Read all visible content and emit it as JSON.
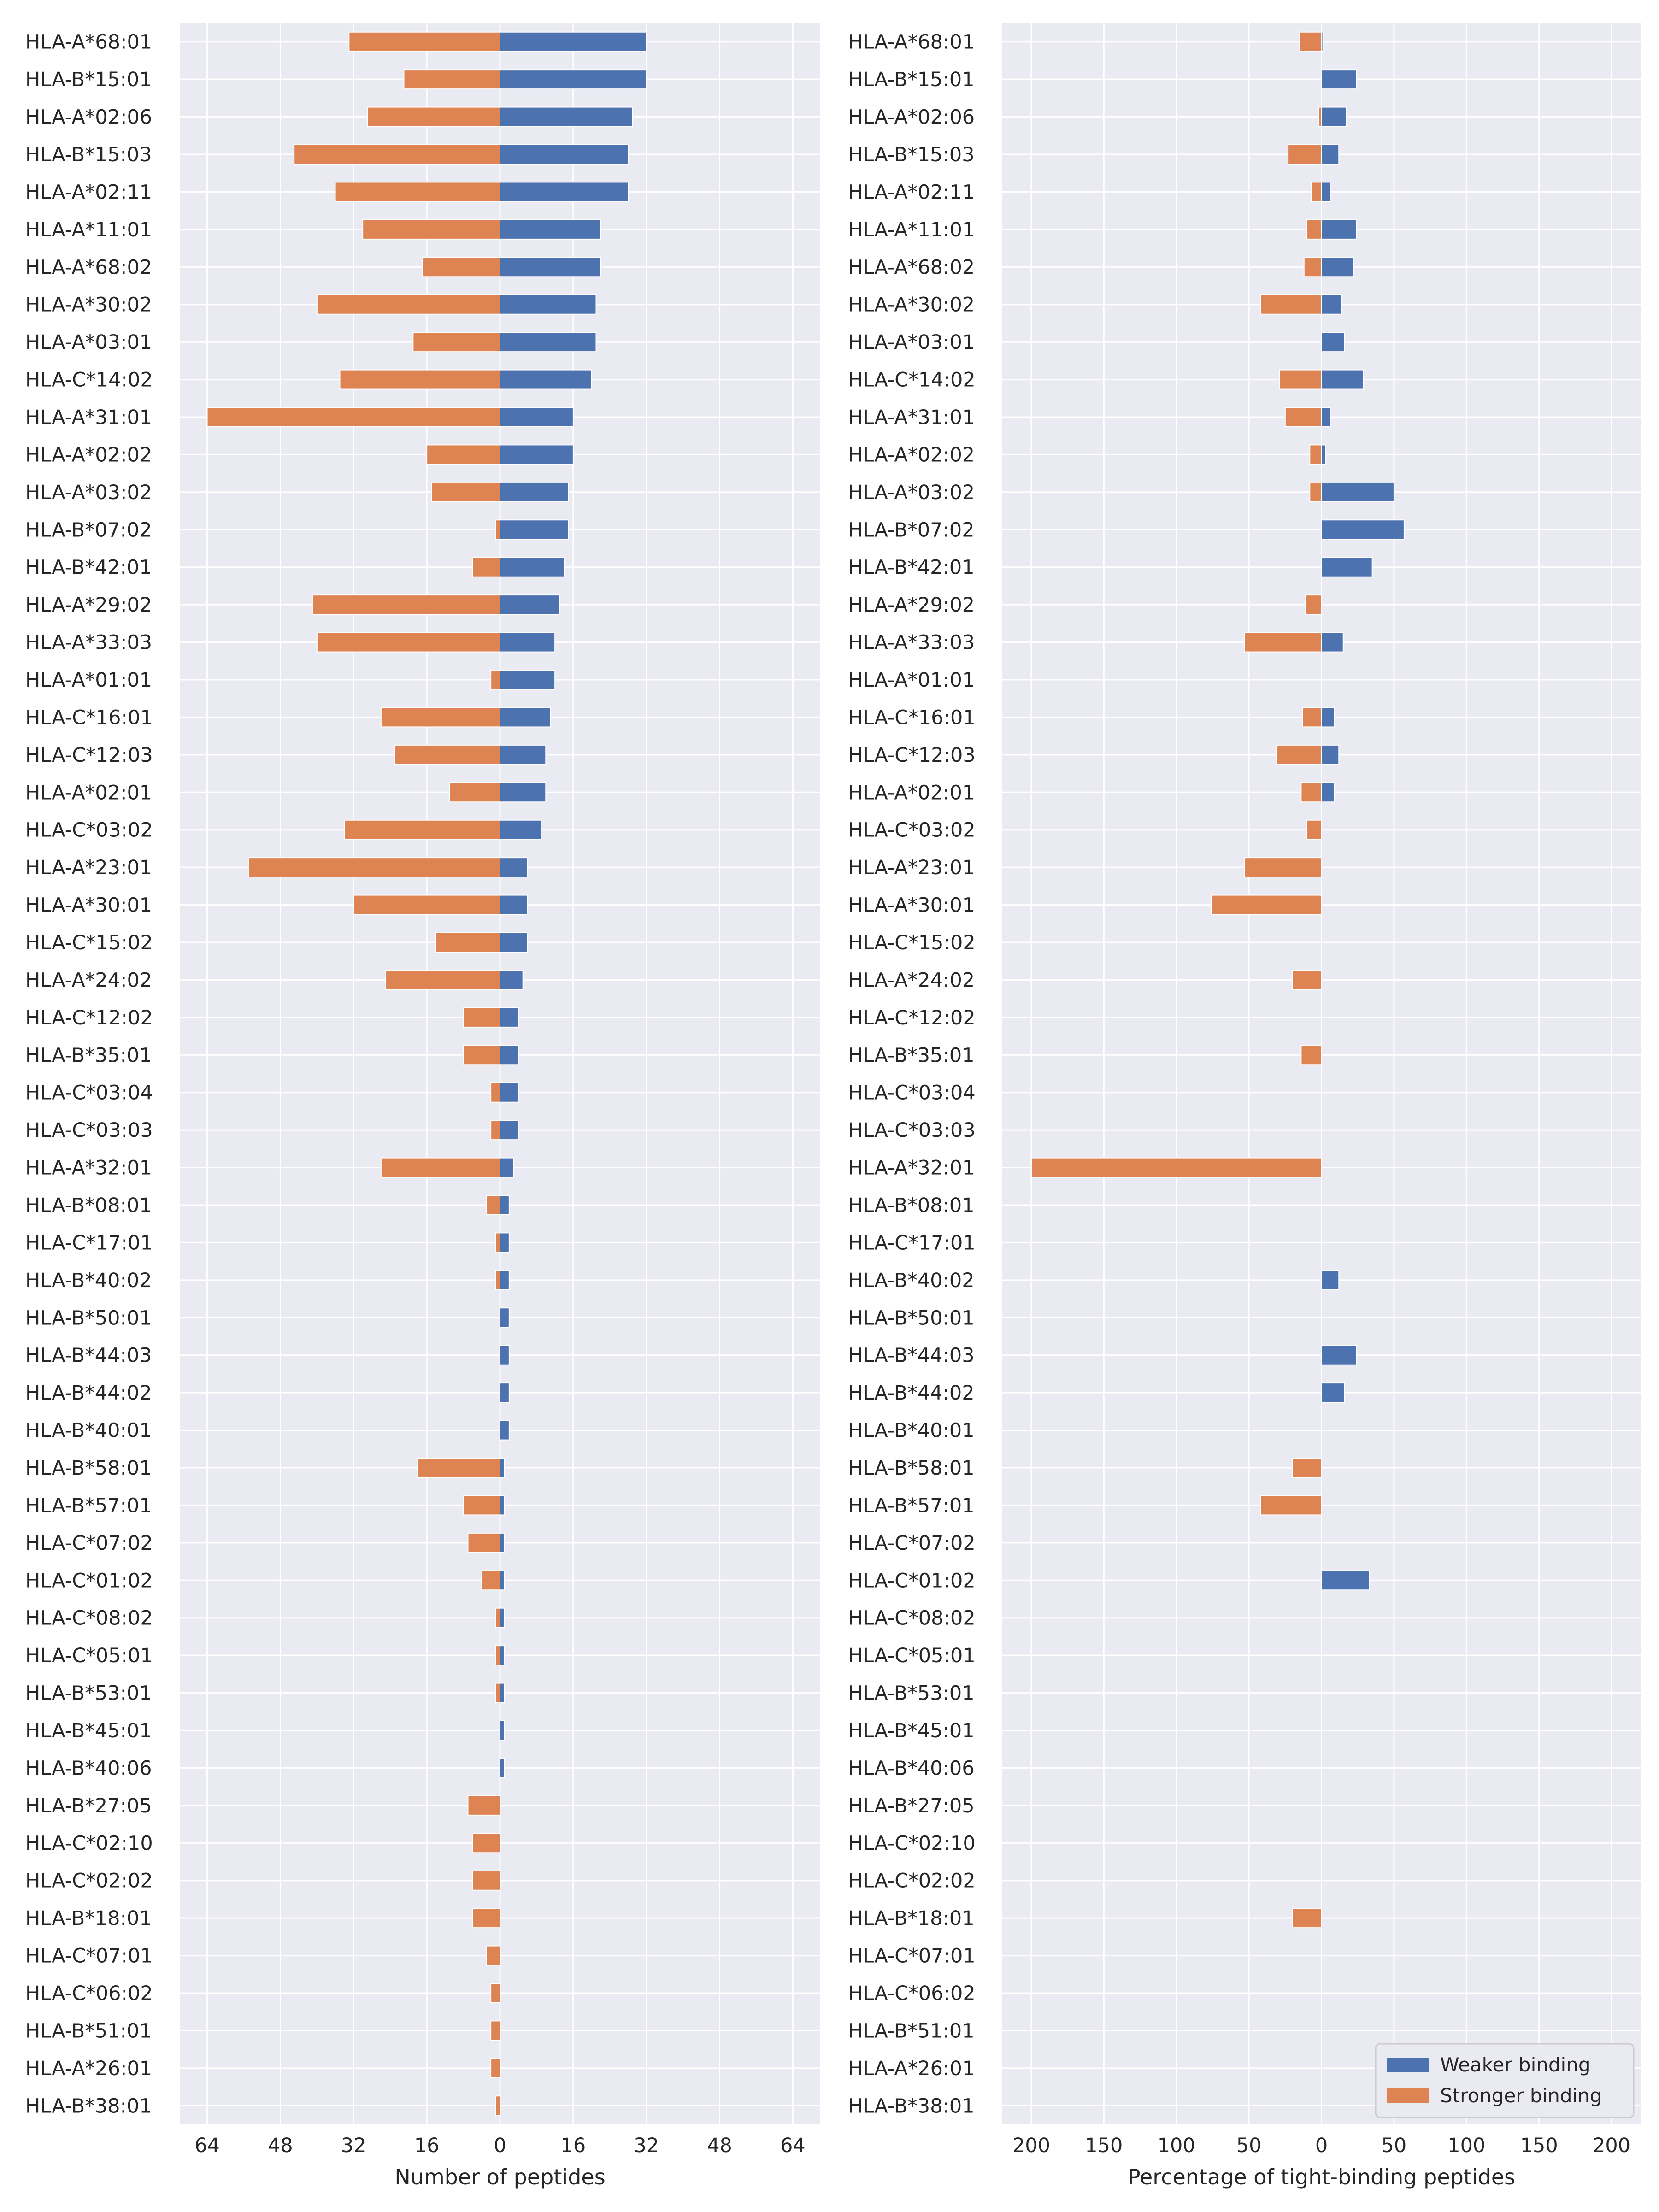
{
  "colors": {
    "weaker": "#4c72b0",
    "stronger": "#dd8452",
    "panel_bg": "#eaeaf2",
    "grid": "#ffffff",
    "text": "#262626"
  },
  "legend": {
    "weaker_label": "Weaker binding",
    "stronger_label": "Stronger binding",
    "placement": "lower-right"
  },
  "chart_data": [
    {
      "type": "bar",
      "orientation": "horizontal-diverging",
      "xlabel": "Number of peptides",
      "xlim": [
        -70,
        70
      ],
      "xticks": [
        -64,
        -48,
        -32,
        -16,
        0,
        16,
        32,
        48,
        64
      ],
      "xtick_labels": [
        "64",
        "48",
        "32",
        "16",
        "0",
        "16",
        "32",
        "48",
        "64"
      ],
      "grid": true,
      "categories": [
        "HLA-A*68:01",
        "HLA-B*15:01",
        "HLA-A*02:06",
        "HLA-B*15:03",
        "HLA-A*02:11",
        "HLA-A*11:01",
        "HLA-A*68:02",
        "HLA-A*30:02",
        "HLA-A*03:01",
        "HLA-C*14:02",
        "HLA-A*31:01",
        "HLA-A*02:02",
        "HLA-A*03:02",
        "HLA-B*07:02",
        "HLA-B*42:01",
        "HLA-A*29:02",
        "HLA-A*33:03",
        "HLA-A*01:01",
        "HLA-C*16:01",
        "HLA-C*12:03",
        "HLA-A*02:01",
        "HLA-C*03:02",
        "HLA-A*23:01",
        "HLA-A*30:01",
        "HLA-C*15:02",
        "HLA-A*24:02",
        "HLA-C*12:02",
        "HLA-B*35:01",
        "HLA-C*03:04",
        "HLA-C*03:03",
        "HLA-A*32:01",
        "HLA-B*08:01",
        "HLA-C*17:01",
        "HLA-B*40:02",
        "HLA-B*50:01",
        "HLA-B*44:03",
        "HLA-B*44:02",
        "HLA-B*40:01",
        "HLA-B*58:01",
        "HLA-B*57:01",
        "HLA-C*07:02",
        "HLA-C*01:02",
        "HLA-C*08:02",
        "HLA-C*05:01",
        "HLA-B*53:01",
        "HLA-B*45:01",
        "HLA-B*40:06",
        "HLA-B*27:05",
        "HLA-C*02:10",
        "HLA-C*02:02",
        "HLA-B*18:01",
        "HLA-C*07:01",
        "HLA-C*06:02",
        "HLA-B*51:01",
        "HLA-A*26:01",
        "HLA-B*38:01"
      ],
      "series": [
        {
          "name": "Weaker binding",
          "values": [
            32,
            32,
            29,
            28,
            28,
            22,
            22,
            21,
            21,
            20,
            16,
            16,
            15,
            15,
            14,
            13,
            12,
            12,
            11,
            10,
            10,
            9,
            6,
            6,
            6,
            5,
            4,
            4,
            4,
            4,
            3,
            2,
            2,
            2,
            2,
            2,
            2,
            2,
            1,
            1,
            1,
            1,
            1,
            1,
            1,
            1,
            1,
            0,
            0,
            0,
            0,
            0,
            0,
            0,
            0,
            0
          ]
        },
        {
          "name": "Stronger binding",
          "values": [
            -33,
            -21,
            -29,
            -45,
            -36,
            -30,
            -17,
            -40,
            -19,
            -35,
            -64,
            -16,
            -15,
            -1,
            -6,
            -41,
            -40,
            -2,
            -26,
            -23,
            -11,
            -34,
            -55,
            -32,
            -14,
            -25,
            -8,
            -8,
            -2,
            -2,
            -26,
            -3,
            -1,
            -1,
            0,
            0,
            0,
            0,
            -18,
            -8,
            -7,
            -4,
            -1,
            -1,
            -1,
            0,
            0,
            -7,
            -6,
            -6,
            -6,
            -3,
            -2,
            -2,
            -2,
            -1
          ]
        }
      ]
    },
    {
      "type": "bar",
      "orientation": "horizontal-diverging",
      "xlabel": "Percentage of tight-binding peptides",
      "xlim": [
        -220,
        220
      ],
      "xticks": [
        -200,
        -150,
        -100,
        -50,
        0,
        50,
        100,
        150,
        200
      ],
      "xtick_labels": [
        "200",
        "150",
        "100",
        "50",
        "0",
        "50",
        "100",
        "150",
        "200"
      ],
      "grid": true,
      "categories": [
        "HLA-A*68:01",
        "HLA-B*15:01",
        "HLA-A*02:06",
        "HLA-B*15:03",
        "HLA-A*02:11",
        "HLA-A*11:01",
        "HLA-A*68:02",
        "HLA-A*30:02",
        "HLA-A*03:01",
        "HLA-C*14:02",
        "HLA-A*31:01",
        "HLA-A*02:02",
        "HLA-A*03:02",
        "HLA-B*07:02",
        "HLA-B*42:01",
        "HLA-A*29:02",
        "HLA-A*33:03",
        "HLA-A*01:01",
        "HLA-C*16:01",
        "HLA-C*12:03",
        "HLA-A*02:01",
        "HLA-C*03:02",
        "HLA-A*23:01",
        "HLA-A*30:01",
        "HLA-C*15:02",
        "HLA-A*24:02",
        "HLA-C*12:02",
        "HLA-B*35:01",
        "HLA-C*03:04",
        "HLA-C*03:03",
        "HLA-A*32:01",
        "HLA-B*08:01",
        "HLA-C*17:01",
        "HLA-B*40:02",
        "HLA-B*50:01",
        "HLA-B*44:03",
        "HLA-B*44:02",
        "HLA-B*40:01",
        "HLA-B*58:01",
        "HLA-B*57:01",
        "HLA-C*07:02",
        "HLA-C*01:02",
        "HLA-C*08:02",
        "HLA-C*05:01",
        "HLA-B*53:01",
        "HLA-B*45:01",
        "HLA-B*40:06",
        "HLA-B*27:05",
        "HLA-C*02:10",
        "HLA-C*02:02",
        "HLA-B*18:01",
        "HLA-C*07:01",
        "HLA-C*06:02",
        "HLA-B*51:01",
        "HLA-A*26:01",
        "HLA-B*38:01"
      ],
      "series": [
        {
          "name": "Weaker binding",
          "values": [
            1,
            24,
            17,
            12,
            6,
            24,
            22,
            14,
            16,
            29,
            6,
            3,
            50,
            57,
            35,
            0,
            15,
            0,
            9,
            12,
            9,
            0,
            0,
            0,
            0,
            0,
            0,
            0,
            0,
            0,
            0,
            0,
            0,
            12,
            0,
            24,
            16,
            0,
            0,
            0,
            0,
            33,
            0,
            0,
            0,
            0,
            0,
            0,
            0,
            0,
            0,
            0,
            0,
            0,
            0,
            0
          ]
        },
        {
          "name": "Stronger binding",
          "values": [
            -15,
            0,
            -2,
            -23,
            -7,
            -10,
            -12,
            -42,
            0,
            -29,
            -25,
            -8,
            -8,
            0,
            0,
            -11,
            -53,
            0,
            -13,
            -31,
            -14,
            -10,
            -53,
            -76,
            0,
            -20,
            0,
            -14,
            0,
            0,
            -200,
            0,
            0,
            0,
            0,
            0,
            0,
            0,
            -20,
            -42,
            0,
            0,
            0,
            0,
            0,
            0,
            0,
            0,
            0,
            0,
            -20,
            0,
            0,
            0,
            0,
            0
          ]
        }
      ]
    }
  ]
}
